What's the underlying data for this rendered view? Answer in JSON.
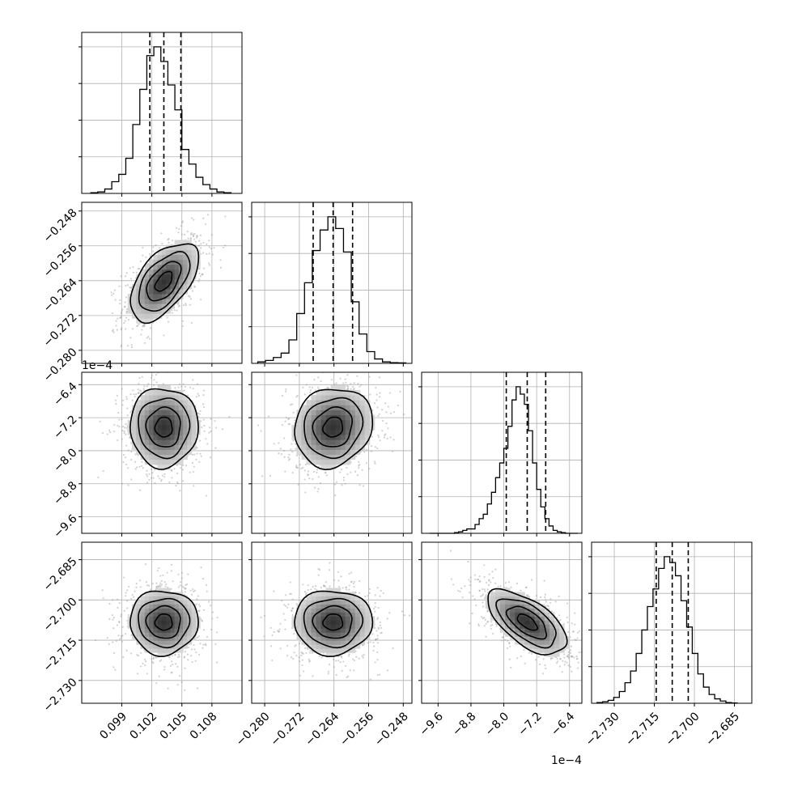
{
  "chart_data": {
    "type": "corner",
    "n_params": 4,
    "grid": true,
    "axis_ranges": [
      [
        0.095,
        0.111
      ],
      [
        -0.283,
        -0.246
      ],
      [
        -0.001,
        -0.00061
      ],
      [
        -2.7385,
        -2.6785
      ]
    ],
    "ticks": [
      {
        "values": [
          0.099,
          0.102,
          0.105,
          0.108
        ],
        "labels": [
          "0.099",
          "0.102",
          "0.105",
          "0.108"
        ]
      },
      {
        "values": [
          -0.28,
          -0.272,
          -0.264,
          -0.256,
          -0.248
        ],
        "labels": [
          "−0.280",
          "−0.272",
          "−0.264",
          "−0.256",
          "−0.248"
        ]
      },
      {
        "values": [
          -0.00096,
          -0.00088,
          -0.0008,
          -0.00072,
          -0.00064
        ],
        "labels": [
          "−9.6",
          "−8.8",
          "−8.0",
          "−7.2",
          "−6.4"
        ]
      },
      {
        "values": [
          -2.73,
          -2.715,
          -2.7,
          -2.685
        ],
        "labels": [
          "−2.730",
          "−2.715",
          "−2.700",
          "−2.685"
        ]
      }
    ],
    "offset_text": [
      "",
      "",
      "1e−4",
      ""
    ],
    "marginals": [
      {
        "quantiles": [
          0.1018,
          0.1032,
          0.1049
        ],
        "bin_edges": [
          0.0959,
          0.0966,
          0.0973,
          0.098,
          0.0987,
          0.0994,
          0.1001,
          0.1008,
          0.1015,
          0.1022,
          0.1029,
          0.1036,
          0.1043,
          0.105,
          0.1057,
          0.1064,
          0.1071,
          0.1078,
          0.1085,
          0.1092,
          0.1099
        ],
        "counts": [
          0.005,
          0.01,
          0.03,
          0.08,
          0.13,
          0.24,
          0.47,
          0.71,
          0.94,
          1.0,
          0.9,
          0.74,
          0.57,
          0.3,
          0.2,
          0.11,
          0.06,
          0.03,
          0.01,
          0.005
        ]
      },
      {
        "quantiles": [
          -0.2688,
          -0.2642,
          -0.2597
        ],
        "bin_edges": [
          -0.2816,
          -0.2798,
          -0.278,
          -0.2762,
          -0.2744,
          -0.2726,
          -0.2708,
          -0.269,
          -0.2672,
          -0.2654,
          -0.2636,
          -0.2618,
          -0.26,
          -0.2582,
          -0.2564,
          -0.2546,
          -0.2528,
          -0.251,
          -0.2492,
          -0.2474
        ],
        "counts": [
          0.01,
          0.02,
          0.04,
          0.07,
          0.16,
          0.34,
          0.55,
          0.77,
          0.91,
          1.0,
          0.92,
          0.76,
          0.42,
          0.2,
          0.08,
          0.03,
          0.01,
          0.005,
          0.003
        ]
      },
      {
        "quantiles": [
          -0.000794,
          -0.000743,
          -0.000698
        ],
        "bin_edges": [
          -0.00098,
          -0.00097,
          -0.00096,
          -0.00095,
          -0.00094,
          -0.00093,
          -0.00092,
          -0.00091,
          -0.0009,
          -0.00089,
          -0.00088,
          -0.00087,
          -0.00086,
          -0.00085,
          -0.00084,
          -0.00083,
          -0.00082,
          -0.00081,
          -0.0008,
          -0.00079,
          -0.00078,
          -0.00077,
          -0.00076,
          -0.00075,
          -0.00074,
          -0.00073,
          -0.00072,
          -0.00071,
          -0.0007,
          -0.00069,
          -0.00068,
          -0.00067,
          -0.00066,
          -0.00065,
          -0.00064,
          -0.00063,
          -0.00062
        ],
        "counts": [
          0.0,
          0.0,
          0.0,
          0.0,
          0.0,
          0.0,
          0.005,
          0.01,
          0.02,
          0.03,
          0.03,
          0.06,
          0.1,
          0.13,
          0.2,
          0.28,
          0.38,
          0.48,
          0.58,
          0.73,
          0.91,
          1.0,
          0.95,
          0.88,
          0.7,
          0.48,
          0.3,
          0.18,
          0.1,
          0.05,
          0.02,
          0.01,
          0.005,
          0.0,
          0.0,
          0.0
        ]
      },
      {
        "quantiles": [
          -2.7143,
          -2.7083,
          -2.7023
        ],
        "bin_edges": [
          -2.7365,
          -2.7344,
          -2.7323,
          -2.7302,
          -2.7281,
          -2.726,
          -2.7239,
          -2.7218,
          -2.7197,
          -2.7176,
          -2.7155,
          -2.7134,
          -2.7113,
          -2.7092,
          -2.7071,
          -2.705,
          -2.7029,
          -2.7008,
          -2.6987,
          -2.6966,
          -2.6945,
          -2.6924,
          -2.6903,
          -2.6882,
          -2.6861,
          -2.684
        ],
        "counts": [
          0.005,
          0.01,
          0.02,
          0.04,
          0.08,
          0.14,
          0.22,
          0.34,
          0.5,
          0.66,
          0.78,
          0.92,
          1.0,
          0.96,
          0.87,
          0.7,
          0.52,
          0.34,
          0.2,
          0.11,
          0.06,
          0.03,
          0.015,
          0.005,
          0.002
        ]
      }
    ],
    "joint": [
      {
        "x": 0,
        "y": 1,
        "center": [
          0.1032,
          -0.2642
        ],
        "sigma": [
          0.0017,
          0.0045
        ],
        "corr": 0.55
      },
      {
        "x": 0,
        "y": 2,
        "center": [
          0.1032,
          -0.000743
        ],
        "sigma": [
          0.0017,
          4.8e-05
        ],
        "corr": 0.0
      },
      {
        "x": 1,
        "y": 2,
        "center": [
          -0.2642,
          -0.000743
        ],
        "sigma": [
          0.0045,
          4.8e-05
        ],
        "corr": 0.12
      },
      {
        "x": 0,
        "y": 3,
        "center": [
          0.1032,
          -2.7083
        ],
        "sigma": [
          0.0017,
          0.006
        ],
        "corr": 0.0
      },
      {
        "x": 1,
        "y": 3,
        "center": [
          -0.2642,
          -2.7083
        ],
        "sigma": [
          0.0045,
          0.006
        ],
        "corr": 0.0
      },
      {
        "x": 2,
        "y": 3,
        "center": [
          -0.000743,
          -2.7083
        ],
        "sigma": [
          4.8e-05,
          0.006
        ],
        "corr": -0.62
      }
    ],
    "contour_levels_sigma": [
      0.5,
      1.0,
      1.5,
      2.0
    ]
  }
}
